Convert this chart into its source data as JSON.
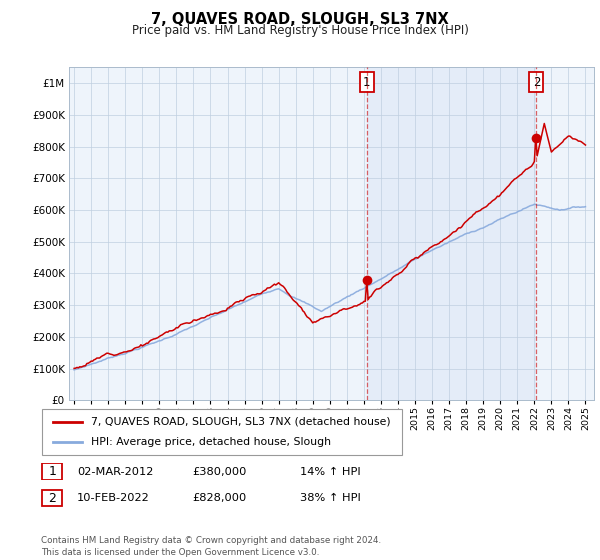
{
  "title": "7, QUAVES ROAD, SLOUGH, SL3 7NX",
  "subtitle": "Price paid vs. HM Land Registry's House Price Index (HPI)",
  "background_color": "#ffffff",
  "grid_color": "#ccddee",
  "hpi_line_color": "#88aadd",
  "price_line_color": "#cc0000",
  "fill_color": "#ddeeff",
  "annotation1_date_num": 2012.17,
  "annotation2_date_num": 2022.12,
  "annotation1_price": 380000,
  "annotation2_price": 828000,
  "legend_line1": "7, QUAVES ROAD, SLOUGH, SL3 7NX (detached house)",
  "legend_line2": "HPI: Average price, detached house, Slough",
  "table_row1": [
    "1",
    "02-MAR-2012",
    "£380,000",
    "14% ↑ HPI"
  ],
  "table_row2": [
    "2",
    "10-FEB-2022",
    "£828,000",
    "38% ↑ HPI"
  ],
  "footer": "Contains HM Land Registry data © Crown copyright and database right 2024.\nThis data is licensed under the Open Government Licence v3.0.",
  "ylim": [
    0,
    1050000
  ],
  "xlim_start": 1994.7,
  "xlim_end": 2025.5,
  "xticks": [
    1995,
    1996,
    1997,
    1998,
    1999,
    2000,
    2001,
    2002,
    2003,
    2004,
    2005,
    2006,
    2007,
    2008,
    2009,
    2010,
    2011,
    2012,
    2013,
    2014,
    2015,
    2016,
    2017,
    2018,
    2019,
    2020,
    2021,
    2022,
    2023,
    2024,
    2025
  ]
}
